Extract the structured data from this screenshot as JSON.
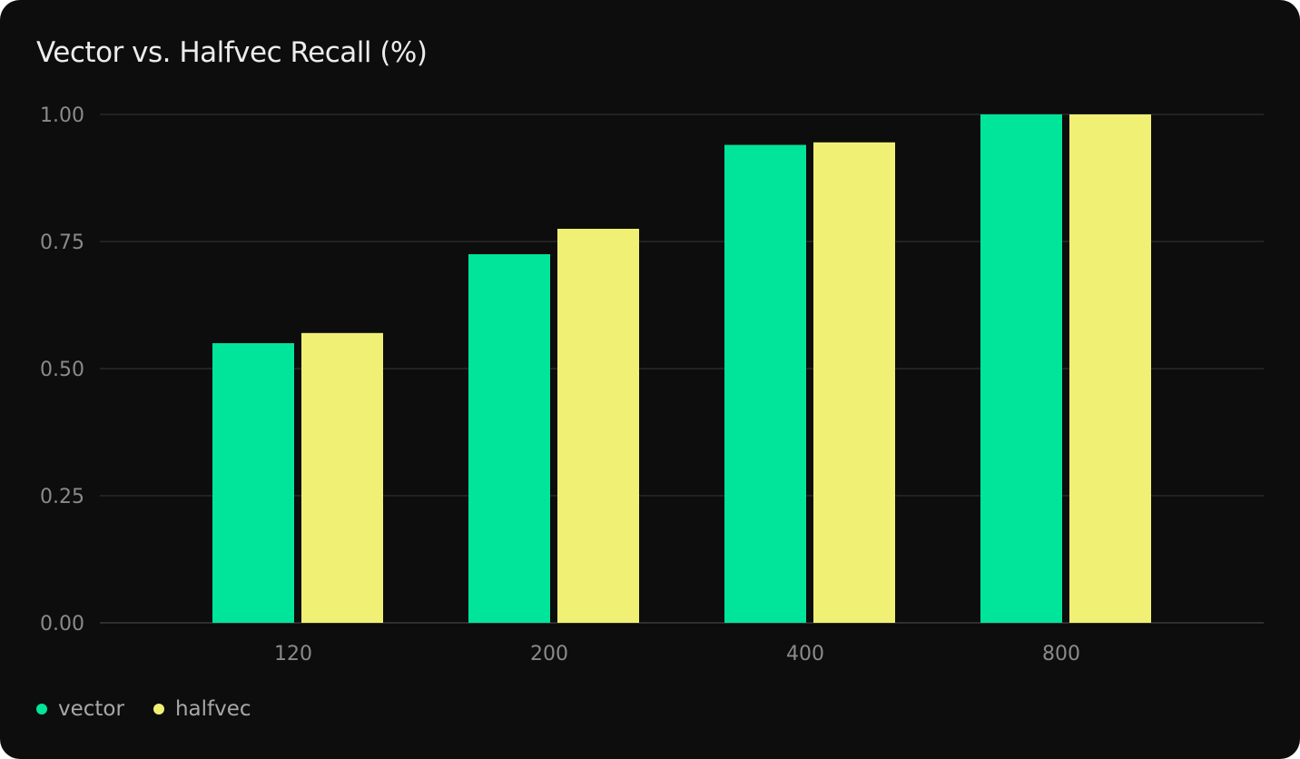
{
  "chart_data": {
    "type": "bar",
    "title": "Vector vs. Halfvec Recall (%)",
    "xlabel": "",
    "ylabel": "",
    "categories": [
      "120",
      "200",
      "400",
      "800"
    ],
    "series": [
      {
        "name": "vector",
        "color": "#00e599",
        "values": [
          0.55,
          0.725,
          0.94,
          1.0
        ]
      },
      {
        "name": "halfvec",
        "color": "#f0f075",
        "values": [
          0.57,
          0.775,
          0.945,
          1.0
        ]
      }
    ],
    "ylim": [
      0,
      1
    ],
    "yticks": [
      "0.00",
      "0.25",
      "0.50",
      "0.75",
      "1.00"
    ],
    "grid": true,
    "legend": "bottom-left"
  }
}
